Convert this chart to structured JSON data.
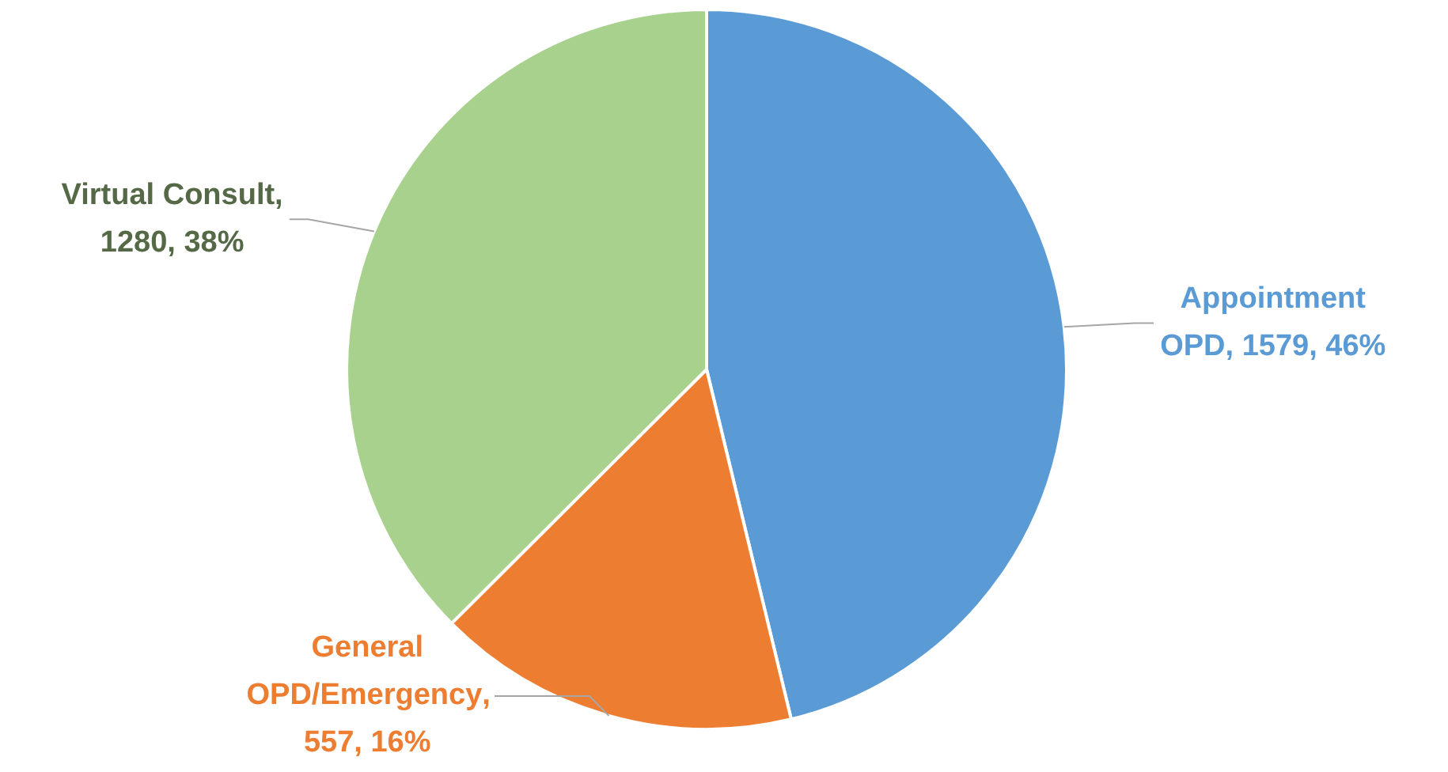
{
  "chart_data": {
    "type": "pie",
    "categories": [
      "Appointment OPD",
      "General OPD/Emergency",
      "Virtual Consult"
    ],
    "values": [
      1579,
      557,
      1280
    ],
    "colors": [
      "#5b9bd5",
      "#ed7d31",
      "#a9d18e"
    ],
    "value_labels": [
      ", 1579, 46%",
      ", 557, 16%",
      ", 1280, 38%"
    ],
    "legend": false
  }
}
